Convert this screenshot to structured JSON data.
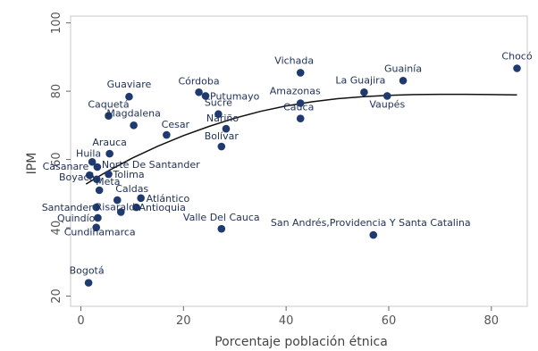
{
  "chart_data": {
    "type": "scatter",
    "title": "",
    "xlabel": "Porcentaje población étnica",
    "ylabel": "IPM",
    "xlim": [
      -2,
      87
    ],
    "ylim": [
      17,
      102
    ],
    "xticks": [
      "0",
      "20",
      "40",
      "60",
      "80"
    ],
    "yticks": [
      "20",
      "40",
      "60",
      "80",
      "100"
    ],
    "grid": false,
    "colors": {
      "point": "#1f3a6e",
      "trend": "#111111",
      "label": "#1e2f55"
    },
    "points": [
      {
        "label": "Chocó",
        "x": 85.0,
        "y": 86.7
      },
      {
        "label": "Guainía",
        "x": 62.8,
        "y": 83.1
      },
      {
        "label": "Vichada",
        "x": 42.8,
        "y": 85.4
      },
      {
        "label": "La Guajira",
        "x": 55.2,
        "y": 79.7
      },
      {
        "label": "Vaupés",
        "x": 59.7,
        "y": 78.6
      },
      {
        "label": "Amazonas",
        "x": 42.8,
        "y": 76.5
      },
      {
        "label": "Cauca",
        "x": 42.8,
        "y": 72.0
      },
      {
        "label": "Córdoba",
        "x": 23.0,
        "y": 79.7
      },
      {
        "label": "Putumayo",
        "x": 24.3,
        "y": 78.6
      },
      {
        "label": "Sucre",
        "x": 26.8,
        "y": 73.3
      },
      {
        "label": "Nariño",
        "x": 28.3,
        "y": 69.0
      },
      {
        "label": "Bolívar",
        "x": 27.4,
        "y": 63.8
      },
      {
        "label": "Guaviare",
        "x": 9.4,
        "y": 78.4
      },
      {
        "label": "Caquetá",
        "x": 5.4,
        "y": 72.8
      },
      {
        "label": "Magdalena",
        "x": 10.3,
        "y": 70.0
      },
      {
        "label": "Cesar",
        "x": 16.7,
        "y": 67.2
      },
      {
        "label": "Arauca",
        "x": 5.6,
        "y": 61.7
      },
      {
        "label": "Huila",
        "x": 2.2,
        "y": 59.3
      },
      {
        "label": "Norte De Santander",
        "x": 3.2,
        "y": 57.8
      },
      {
        "label": "Casanare",
        "x": 1.7,
        "y": 55.4
      },
      {
        "label": "Tolima",
        "x": 5.4,
        "y": 55.7
      },
      {
        "label": "Boyacá",
        "x": 3.1,
        "y": 54.2
      },
      {
        "label": "Meta",
        "x": 3.6,
        "y": 51.0
      },
      {
        "label": "Caldas",
        "x": 7.1,
        "y": 48.1
      },
      {
        "label": "Atlántico",
        "x": 11.7,
        "y": 48.7
      },
      {
        "label": "Santander",
        "x": 3.0,
        "y": 46.0
      },
      {
        "label": "Antioquia",
        "x": 10.8,
        "y": 46.0
      },
      {
        "label": "Risaralda",
        "x": 7.8,
        "y": 44.6
      },
      {
        "label": "Quindío",
        "x": 3.3,
        "y": 42.9
      },
      {
        "label": "Valle Del Cauca",
        "x": 27.4,
        "y": 39.7
      },
      {
        "label": "Cundinamarca",
        "x": 3.0,
        "y": 40.1
      },
      {
        "label": "San Andrés,Providencia Y Santa Catalina",
        "x": 57.0,
        "y": 37.9
      },
      {
        "label": "Bogotá",
        "x": 1.5,
        "y": 23.9
      }
    ],
    "trend": [
      {
        "x": 1,
        "y": 52.8
      },
      {
        "x": 5,
        "y": 56.4
      },
      {
        "x": 10,
        "y": 60.4
      },
      {
        "x": 15,
        "y": 63.9
      },
      {
        "x": 20,
        "y": 67.0
      },
      {
        "x": 25,
        "y": 69.7
      },
      {
        "x": 30,
        "y": 72.1
      },
      {
        "x": 35,
        "y": 74.1
      },
      {
        "x": 40,
        "y": 75.7
      },
      {
        "x": 45,
        "y": 76.9
      },
      {
        "x": 50,
        "y": 77.8
      },
      {
        "x": 55,
        "y": 78.4
      },
      {
        "x": 60,
        "y": 78.8
      },
      {
        "x": 65,
        "y": 79.0
      },
      {
        "x": 70,
        "y": 79.1
      },
      {
        "x": 75,
        "y": 79.1
      },
      {
        "x": 80,
        "y": 79.0
      },
      {
        "x": 85,
        "y": 78.9
      }
    ]
  }
}
